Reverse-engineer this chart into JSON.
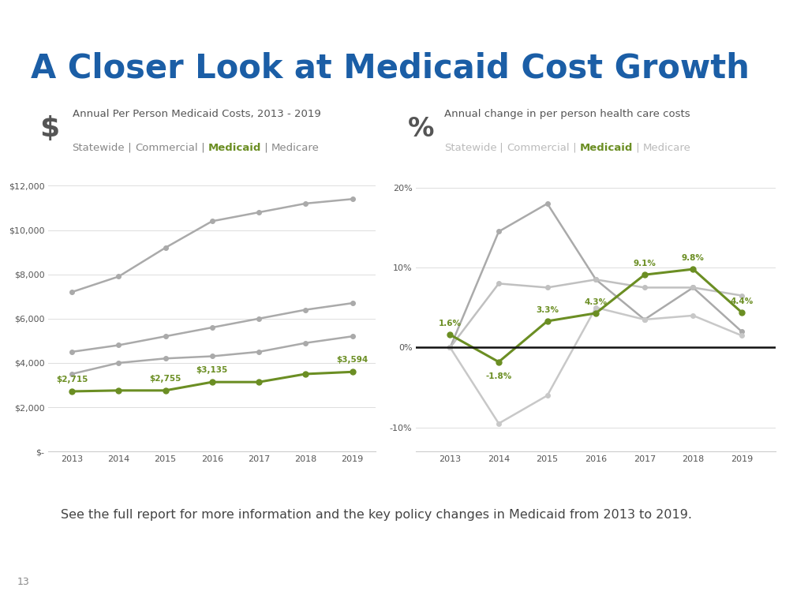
{
  "title": "A Closer Look at Medicaid Cost Growth",
  "title_color": "#1B5EA6",
  "header_bar_color": "#1B5EA6",
  "background_color": "#FFFFFF",
  "footer_text": "See the full report for more information and the key policy changes in Medicaid from 2013 to 2019.",
  "page_number": "13",
  "left_chart": {
    "icon_label": "$",
    "title_line1": "Annual Per Person Medicaid Costs, 2013 - 2019",
    "title_line2_parts": [
      "Statewide",
      " | ",
      "Commercial",
      " | ",
      "Medicaid",
      " | ",
      "Medicare"
    ],
    "title_line2_bold": [
      false,
      false,
      false,
      false,
      true,
      false,
      false
    ],
    "title_line2_colors": [
      "#888888",
      "#888888",
      "#888888",
      "#888888",
      "#6B8E23",
      "#888888",
      "#888888"
    ],
    "years": [
      2013,
      2014,
      2015,
      2016,
      2017,
      2018,
      2019
    ],
    "statewide": [
      7200,
      7900,
      9200,
      10400,
      10800,
      11200,
      11400
    ],
    "commercial": [
      4500,
      4800,
      5200,
      5600,
      6000,
      6400,
      6700
    ],
    "medicaid": [
      2715,
      2755,
      2755,
      3135,
      3135,
      3500,
      3594
    ],
    "medicare": [
      3500,
      4000,
      4200,
      4300,
      4500,
      4900,
      5200
    ],
    "medicaid_labels": [
      "$2,715",
      "",
      "$2,755",
      "$3,135",
      "",
      "",
      "$3,594"
    ],
    "medicaid_color": "#6B8E23",
    "grey_color": "#AAAAAA",
    "ylim": [
      0,
      13000
    ],
    "yticks": [
      0,
      2000,
      4000,
      6000,
      8000,
      10000,
      12000
    ],
    "ytick_labels": [
      "$-",
      "$2,000",
      "$4,000",
      "$6,000",
      "$8,000",
      "$10,000",
      "$12,000"
    ]
  },
  "right_chart": {
    "icon_label": "%",
    "title_line1": "Annual change in per person health care costs",
    "title_line2_parts": [
      "Statewide",
      " | ",
      "Commercial",
      " | ",
      "Medicaid",
      " | ",
      "Medicare"
    ],
    "title_line2_bold": [
      false,
      false,
      false,
      false,
      true,
      false,
      false
    ],
    "title_line2_colors": [
      "#BBBBBB",
      "#BBBBBB",
      "#BBBBBB",
      "#BBBBBB",
      "#6B8E23",
      "#BBBBBB",
      "#BBBBBB"
    ],
    "years": [
      2013,
      2014,
      2015,
      2016,
      2017,
      2018,
      2019
    ],
    "statewide": [
      0.0,
      14.5,
      18.0,
      8.5,
      3.5,
      7.5,
      2.0
    ],
    "commercial": [
      0.0,
      8.0,
      7.5,
      8.5,
      7.5,
      7.5,
      6.5
    ],
    "medicaid": [
      1.6,
      -1.8,
      3.3,
      4.3,
      9.1,
      9.8,
      4.4
    ],
    "medicare": [
      0.0,
      -9.5,
      -6.0,
      5.0,
      3.5,
      4.0,
      1.5
    ],
    "medicaid_labels": [
      "1.6%",
      "-1.8%",
      "3.3%",
      "4.3%",
      "9.1%",
      "9.8%",
      "4.4%"
    ],
    "medicaid_color": "#6B8E23",
    "grey_color": "#BBBBBB",
    "ylim": [
      -13,
      23
    ],
    "yticks": [
      -10,
      0,
      10,
      20
    ],
    "ytick_labels": [
      "-10%",
      "0%",
      "10%",
      "20%"
    ],
    "zero_line_color": "#111111"
  }
}
